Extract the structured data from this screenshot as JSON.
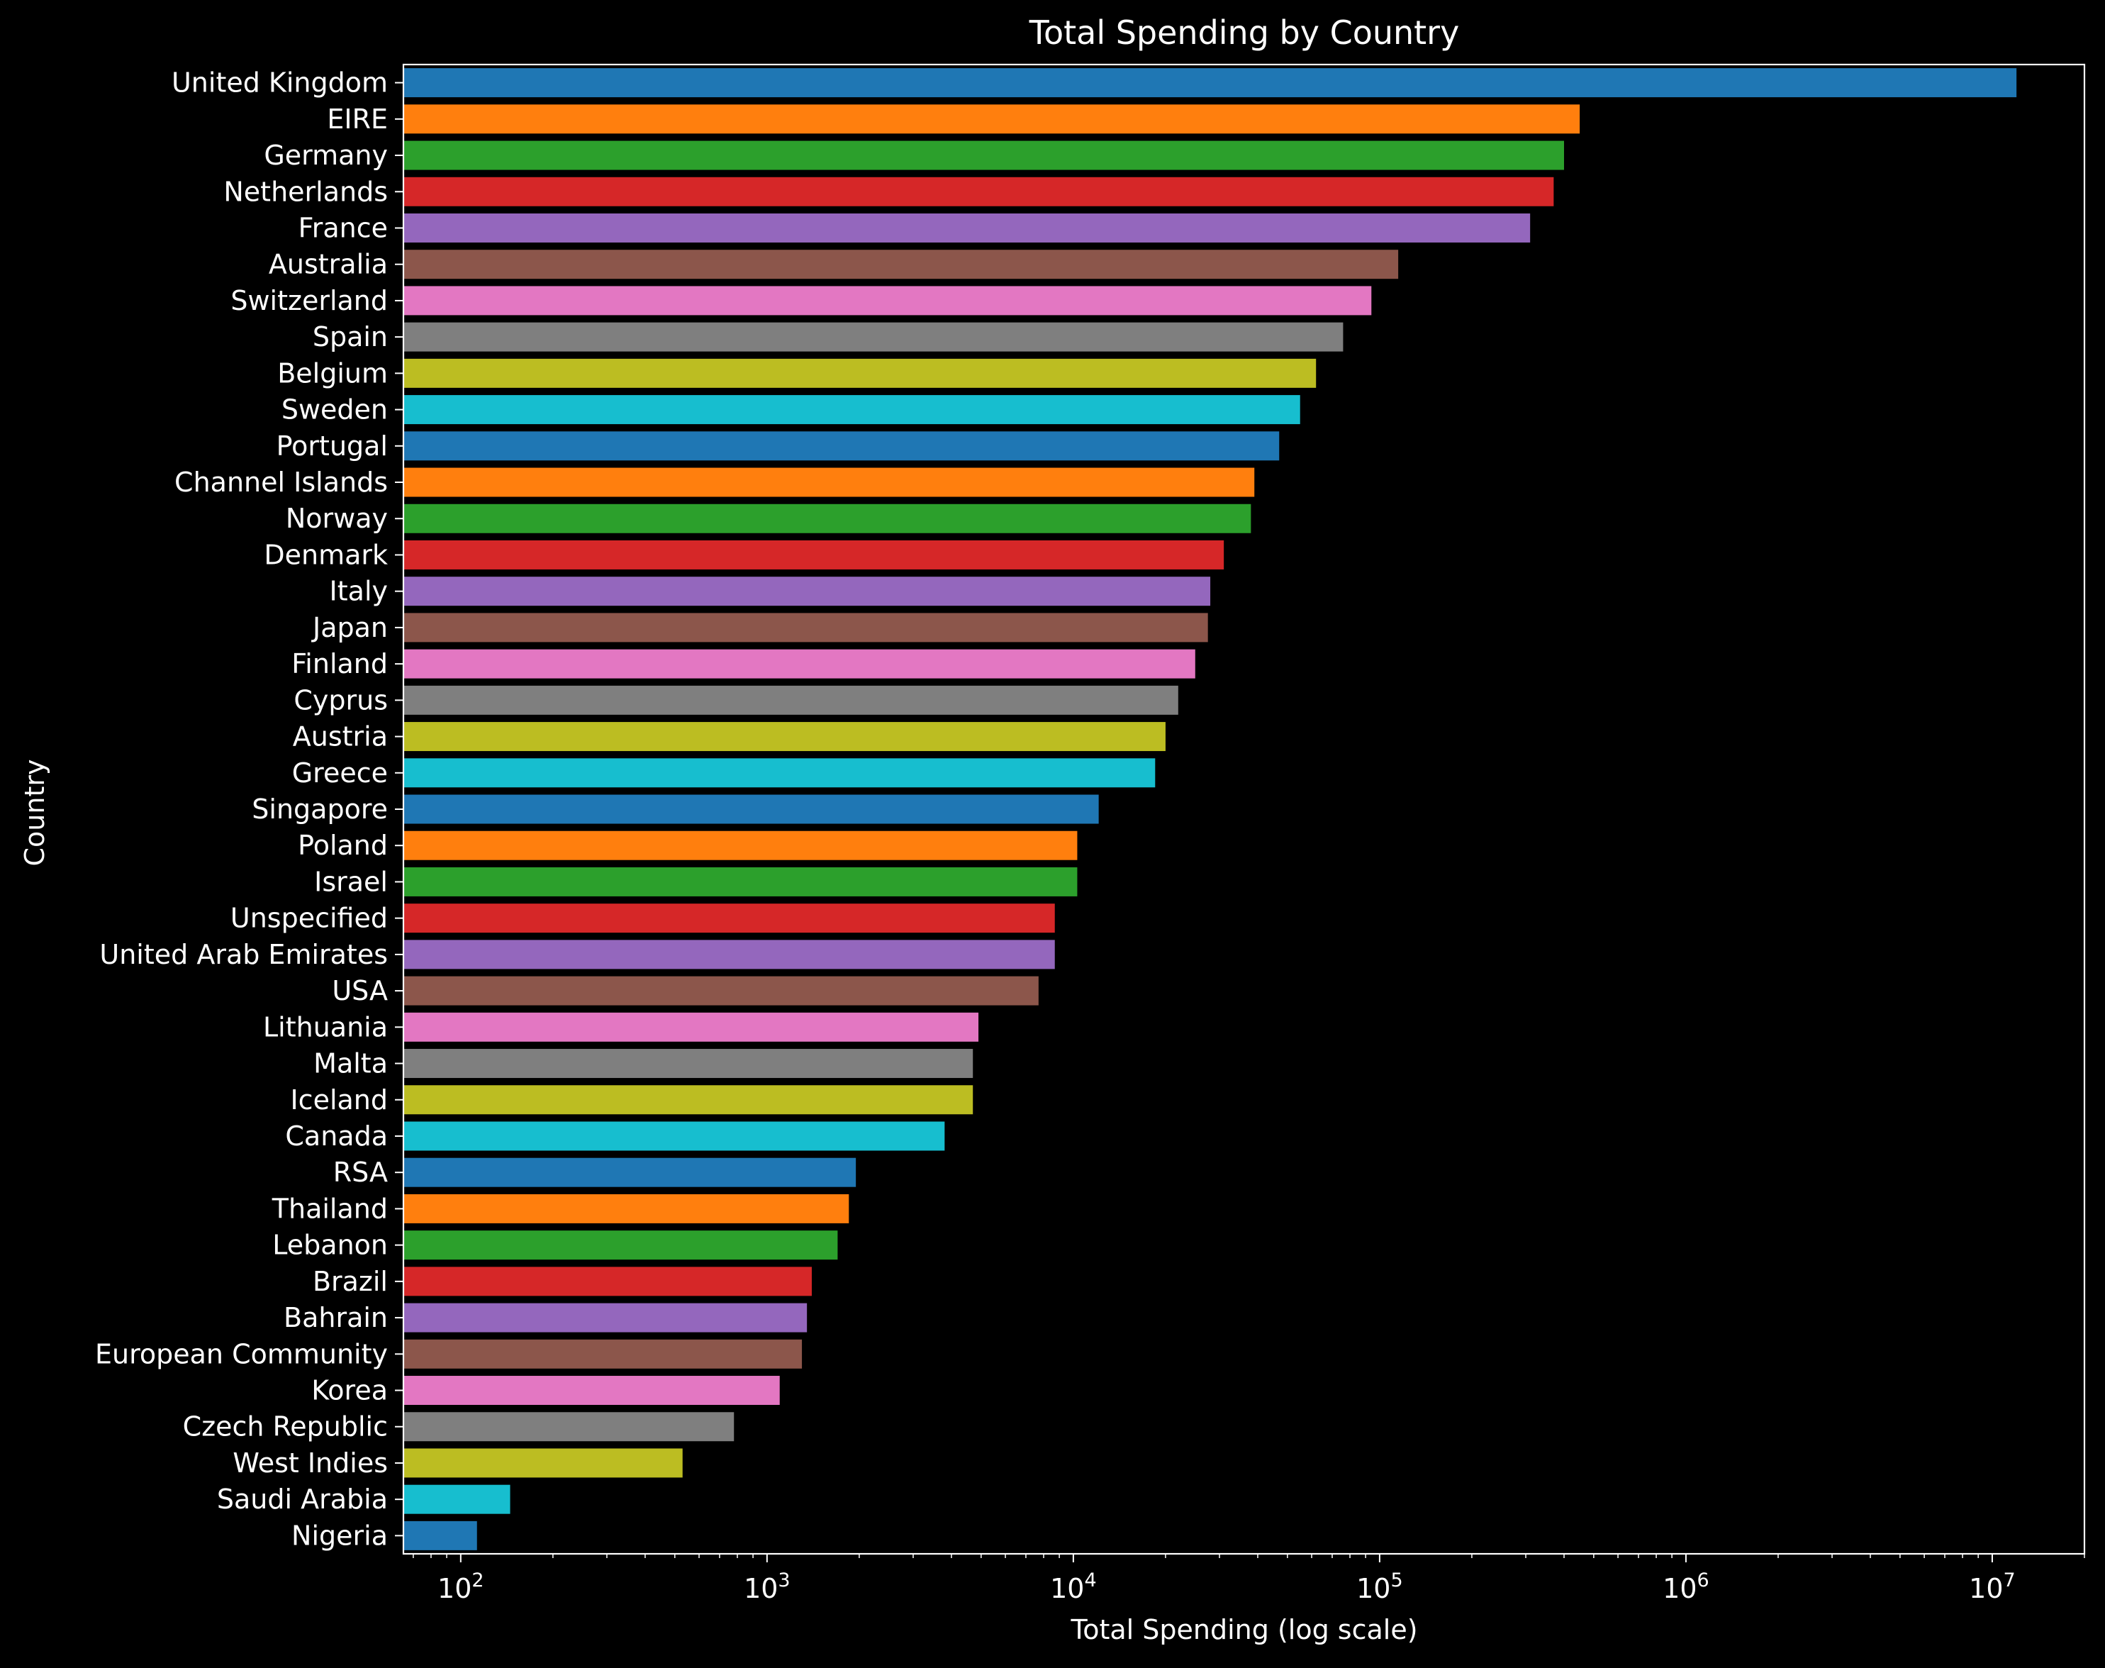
{
  "chart_data": {
    "type": "bar",
    "orientation": "horizontal",
    "title": "Total Spending by Country",
    "xlabel": "Total Spending (log scale)",
    "ylabel": "Country",
    "x_scale": "log",
    "xlim": [
      65,
      20000000
    ],
    "grid": false,
    "legend": "none",
    "x_tick_values": [
      100,
      1000,
      10000,
      100000,
      1000000,
      10000000
    ],
    "x_tick_labels": [
      {
        "base": "10",
        "exp": "2"
      },
      {
        "base": "10",
        "exp": "3"
      },
      {
        "base": "10",
        "exp": "4"
      },
      {
        "base": "10",
        "exp": "5"
      },
      {
        "base": "10",
        "exp": "6"
      },
      {
        "base": "10",
        "exp": "7"
      }
    ],
    "categories": [
      "United Kingdom",
      "EIRE",
      "Germany",
      "Netherlands",
      "France",
      "Australia",
      "Switzerland",
      "Spain",
      "Belgium",
      "Sweden",
      "Portugal",
      "Channel Islands",
      "Norway",
      "Denmark",
      "Italy",
      "Japan",
      "Finland",
      "Cyprus",
      "Austria",
      "Greece",
      "Singapore",
      "Poland",
      "Israel",
      "Unspecified",
      "United Arab Emirates",
      "USA",
      "Lithuania",
      "Malta",
      "Iceland",
      "Canada",
      "RSA",
      "Thailand",
      "Lebanon",
      "Brazil",
      "Bahrain",
      "European Community",
      "Korea",
      "Czech Republic",
      "West Indies",
      "Saudi Arabia",
      "Nigeria"
    ],
    "values": [
      12000000,
      450000,
      400000,
      370000,
      310000,
      115000,
      94000,
      76000,
      62000,
      55000,
      47000,
      39000,
      38000,
      31000,
      28000,
      27500,
      25000,
      22000,
      20000,
      18500,
      12100,
      10300,
      10300,
      8700,
      8700,
      7700,
      4900,
      4700,
      4700,
      3800,
      1950,
      1850,
      1700,
      1400,
      1350,
      1300,
      1100,
      780,
      530,
      145,
      113
    ],
    "palette": [
      "#1f77b4",
      "#ff7f0e",
      "#2ca02c",
      "#d62728",
      "#9467bd",
      "#8c564b",
      "#e377c2",
      "#7f7f7f",
      "#bcbd22",
      "#17becf"
    ],
    "colors": {
      "background": "#000000",
      "axes": "#ffffff",
      "text": "#ffffff"
    }
  }
}
